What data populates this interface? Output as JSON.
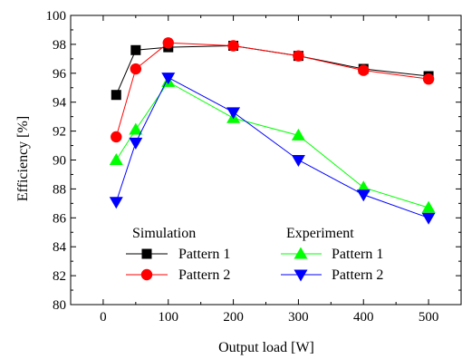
{
  "chart_data": {
    "type": "line",
    "title": "",
    "xlabel": "Output load [W]",
    "ylabel": "Efficiency [%]",
    "xlim": [
      -50,
      550
    ],
    "ylim": [
      80,
      100
    ],
    "xticks": [
      0,
      100,
      200,
      300,
      400,
      500
    ],
    "yticks": [
      80,
      82,
      84,
      86,
      88,
      90,
      92,
      94,
      96,
      98,
      100
    ],
    "grid": false,
    "legend_position": "bottom-center",
    "legend_groups": [
      "Simulation",
      "Experiment"
    ],
    "series": [
      {
        "name": "Pattern 1",
        "group": "Simulation",
        "marker": "square",
        "color": "#000000",
        "x": [
          20,
          50,
          100,
          200,
          300,
          400,
          500
        ],
        "values": [
          94.5,
          97.6,
          97.8,
          97.9,
          97.2,
          96.3,
          95.8
        ]
      },
      {
        "name": "Pattern 2",
        "group": "Simulation",
        "marker": "circle",
        "color": "#ff0000",
        "x": [
          20,
          50,
          100,
          200,
          300,
          400,
          500
        ],
        "values": [
          91.6,
          96.3,
          98.1,
          97.9,
          97.2,
          96.2,
          95.6
        ]
      },
      {
        "name": "Pattern 1",
        "group": "Experiment",
        "marker": "triangle-up",
        "color": "#00ff00",
        "x": [
          20,
          50,
          100,
          200,
          300,
          400,
          500
        ],
        "values": [
          90.0,
          92.1,
          95.4,
          92.9,
          91.7,
          88.1,
          86.7
        ]
      },
      {
        "name": "Pattern 2",
        "group": "Experiment",
        "marker": "triangle-down",
        "color": "#0000ff",
        "x": [
          20,
          50,
          100,
          200,
          300,
          400,
          500
        ],
        "values": [
          87.1,
          91.2,
          95.7,
          93.3,
          90.0,
          87.6,
          86.0
        ]
      }
    ]
  }
}
